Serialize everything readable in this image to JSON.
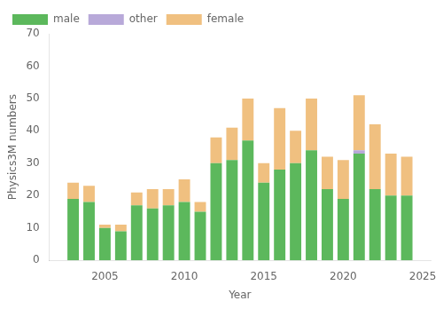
{
  "chart_data": {
    "type": "bar",
    "xlabel": "Year",
    "ylabel": "Physics3M numbers",
    "x": [
      2003,
      2004,
      2005,
      2006,
      2007,
      2008,
      2009,
      2010,
      2011,
      2012,
      2013,
      2014,
      2015,
      2016,
      2017,
      2018,
      2019,
      2020,
      2021,
      2022,
      2023,
      2024
    ],
    "series": [
      {
        "name": "male",
        "color": "#5cb85c",
        "values": [
          19,
          18,
          10,
          9,
          17,
          16,
          17,
          18,
          15,
          30,
          31,
          37,
          24,
          28,
          30,
          34,
          22,
          19,
          33,
          22,
          20,
          20
        ]
      },
      {
        "name": "other",
        "color": "#b8a9d9",
        "values": [
          0,
          0,
          0,
          0,
          0,
          0,
          0,
          0,
          0,
          0,
          0,
          0,
          0,
          0,
          0,
          0,
          0,
          0,
          1,
          0,
          0,
          0
        ]
      },
      {
        "name": "female",
        "color": "#f0c080",
        "values": [
          5,
          5,
          1,
          2,
          4,
          6,
          5,
          7,
          3,
          8,
          10,
          13,
          6,
          19,
          10,
          16,
          10,
          12,
          17,
          20,
          13,
          12
        ]
      }
    ],
    "xlim": [
      2001.5,
      2025.5
    ],
    "xticks": [
      2005,
      2010,
      2015,
      2020,
      2025
    ],
    "ylim": [
      0,
      70
    ],
    "yticks": [
      0,
      10,
      20,
      30,
      40,
      50,
      60,
      70
    ],
    "stacked": true,
    "grid": false,
    "legend": "upper left"
  }
}
